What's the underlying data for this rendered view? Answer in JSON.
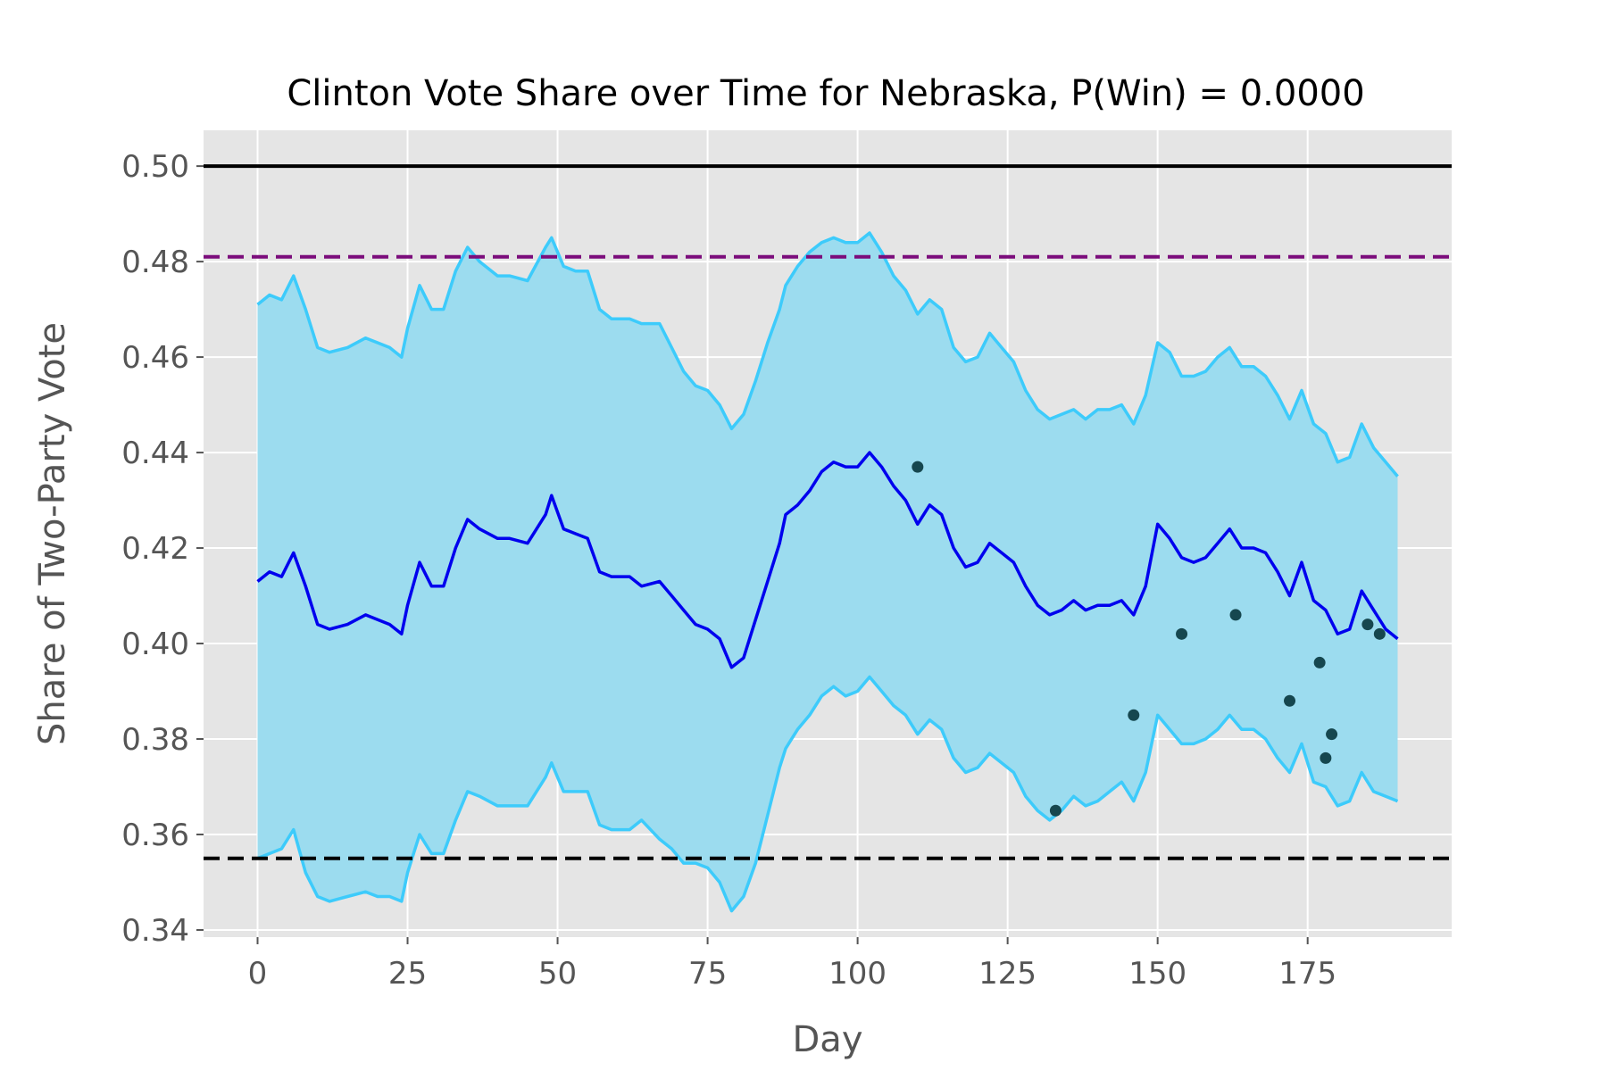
{
  "chart_data": {
    "type": "line",
    "title": "Clinton Vote Share over Time for Nebraska, P(Win) = 0.0000",
    "xlabel": "Day",
    "ylabel": "Share of Two-Party Vote",
    "xlim": [
      -9,
      199
    ],
    "ylim": [
      0.3385,
      0.5075
    ],
    "xticks": [
      0,
      25,
      50,
      75,
      100,
      125,
      150,
      175
    ],
    "yticks": [
      0.34,
      0.36,
      0.38,
      0.4,
      0.42,
      0.44,
      0.46,
      0.48,
      0.5
    ],
    "xtick_labels": [
      "0",
      "25",
      "50",
      "75",
      "100",
      "125",
      "150",
      "175"
    ],
    "ytick_labels": [
      "0.34",
      "0.36",
      "0.38",
      "0.40",
      "0.42",
      "0.44",
      "0.46",
      "0.48",
      "0.50"
    ],
    "grid": true,
    "colors": {
      "background": "#e5e5e5",
      "grid": "#ffffff",
      "band_fill": "#9cdcef",
      "band_edge": "#3dcbfb",
      "mean_line": "#0000ee",
      "reference_solid": "#000000",
      "reference_purple": "#7b0c7b",
      "reference_black_dashed": "#000000",
      "poll_points": "#16474f"
    },
    "reference_lines": [
      {
        "y": 0.5,
        "style": "solid",
        "color": "#000000"
      },
      {
        "y": 0.481,
        "style": "dashed",
        "color": "#7b0c7b"
      },
      {
        "y": 0.355,
        "style": "dashed",
        "color": "#000000"
      }
    ],
    "series": [
      {
        "role": "mean",
        "x": [
          0,
          2,
          4,
          6,
          8,
          10,
          12,
          15,
          18,
          20,
          22,
          24,
          25,
          27,
          29,
          31,
          33,
          35,
          37,
          40,
          42,
          45,
          48,
          49,
          51,
          53,
          55,
          57,
          59,
          62,
          64,
          67,
          69,
          71,
          73,
          75,
          77,
          79,
          81,
          83,
          85,
          87,
          88,
          90,
          92,
          94,
          96,
          98,
          100,
          102,
          104,
          106,
          108,
          110,
          112,
          114,
          116,
          118,
          120,
          122,
          124,
          126,
          128,
          130,
          132,
          134,
          136,
          138,
          140,
          142,
          144,
          146,
          148,
          150,
          152,
          154,
          156,
          158,
          160,
          162,
          164,
          166,
          168,
          170,
          172,
          174,
          176,
          178,
          180,
          182,
          184,
          186,
          188,
          190
        ],
        "y": [
          0.413,
          0.415,
          0.414,
          0.419,
          0.412,
          0.404,
          0.403,
          0.404,
          0.406,
          0.405,
          0.404,
          0.402,
          0.408,
          0.417,
          0.412,
          0.412,
          0.42,
          0.426,
          0.424,
          0.422,
          0.422,
          0.421,
          0.427,
          0.431,
          0.424,
          0.423,
          0.422,
          0.415,
          0.414,
          0.414,
          0.412,
          0.413,
          0.41,
          0.407,
          0.404,
          0.403,
          0.401,
          0.395,
          0.397,
          0.405,
          0.413,
          0.421,
          0.427,
          0.429,
          0.432,
          0.436,
          0.438,
          0.437,
          0.437,
          0.44,
          0.437,
          0.433,
          0.43,
          0.425,
          0.429,
          0.427,
          0.42,
          0.416,
          0.417,
          0.421,
          0.419,
          0.417,
          0.412,
          0.408,
          0.406,
          0.407,
          0.409,
          0.407,
          0.408,
          0.408,
          0.409,
          0.406,
          0.412,
          0.425,
          0.422,
          0.418,
          0.417,
          0.418,
          0.421,
          0.424,
          0.42,
          0.42,
          0.419,
          0.415,
          0.41,
          0.417,
          0.409,
          0.407,
          0.402,
          0.403,
          0.411,
          0.407,
          0.403,
          0.401
        ]
      },
      {
        "role": "upper_bound",
        "x": [
          0,
          2,
          4,
          6,
          8,
          10,
          12,
          15,
          18,
          20,
          22,
          24,
          25,
          27,
          29,
          31,
          33,
          35,
          37,
          40,
          42,
          45,
          48,
          49,
          51,
          53,
          55,
          57,
          59,
          62,
          64,
          67,
          69,
          71,
          73,
          75,
          77,
          79,
          81,
          83,
          85,
          87,
          88,
          90,
          92,
          94,
          96,
          98,
          100,
          102,
          104,
          106,
          108,
          110,
          112,
          114,
          116,
          118,
          120,
          122,
          124,
          126,
          128,
          130,
          132,
          134,
          136,
          138,
          140,
          142,
          144,
          146,
          148,
          150,
          152,
          154,
          156,
          158,
          160,
          162,
          164,
          166,
          168,
          170,
          172,
          174,
          176,
          178,
          180,
          182,
          184,
          186,
          188,
          190
        ],
        "y": [
          0.471,
          0.473,
          0.472,
          0.477,
          0.47,
          0.462,
          0.461,
          0.462,
          0.464,
          0.463,
          0.462,
          0.46,
          0.466,
          0.475,
          0.47,
          0.47,
          0.478,
          0.483,
          0.48,
          0.477,
          0.477,
          0.476,
          0.483,
          0.485,
          0.479,
          0.478,
          0.478,
          0.47,
          0.468,
          0.468,
          0.467,
          0.467,
          0.462,
          0.457,
          0.454,
          0.453,
          0.45,
          0.445,
          0.448,
          0.455,
          0.463,
          0.47,
          0.475,
          0.479,
          0.482,
          0.484,
          0.485,
          0.484,
          0.484,
          0.486,
          0.482,
          0.477,
          0.474,
          0.469,
          0.472,
          0.47,
          0.462,
          0.459,
          0.46,
          0.465,
          0.462,
          0.459,
          0.453,
          0.449,
          0.447,
          0.448,
          0.449,
          0.447,
          0.449,
          0.449,
          0.45,
          0.446,
          0.452,
          0.463,
          0.461,
          0.456,
          0.456,
          0.457,
          0.46,
          0.462,
          0.458,
          0.458,
          0.456,
          0.452,
          0.447,
          0.453,
          0.446,
          0.444,
          0.438,
          0.439,
          0.446,
          0.441,
          0.438,
          0.435
        ]
      },
      {
        "role": "lower_bound",
        "x": [
          0,
          2,
          4,
          6,
          8,
          10,
          12,
          15,
          18,
          20,
          22,
          24,
          25,
          27,
          29,
          31,
          33,
          35,
          37,
          40,
          42,
          45,
          48,
          49,
          51,
          53,
          55,
          57,
          59,
          62,
          64,
          67,
          69,
          71,
          73,
          75,
          77,
          79,
          81,
          83,
          85,
          87,
          88,
          90,
          92,
          94,
          96,
          98,
          100,
          102,
          104,
          106,
          108,
          110,
          112,
          114,
          116,
          118,
          120,
          122,
          124,
          126,
          128,
          130,
          132,
          134,
          136,
          138,
          140,
          142,
          144,
          146,
          148,
          150,
          152,
          154,
          156,
          158,
          160,
          162,
          164,
          166,
          168,
          170,
          172,
          174,
          176,
          178,
          180,
          182,
          184,
          186,
          188,
          190
        ],
        "y": [
          0.355,
          0.356,
          0.357,
          0.361,
          0.352,
          0.347,
          0.346,
          0.347,
          0.348,
          0.347,
          0.347,
          0.346,
          0.352,
          0.36,
          0.356,
          0.356,
          0.363,
          0.369,
          0.368,
          0.366,
          0.366,
          0.366,
          0.372,
          0.375,
          0.369,
          0.369,
          0.369,
          0.362,
          0.361,
          0.361,
          0.363,
          0.359,
          0.357,
          0.354,
          0.354,
          0.353,
          0.35,
          0.344,
          0.347,
          0.354,
          0.364,
          0.374,
          0.378,
          0.382,
          0.385,
          0.389,
          0.391,
          0.389,
          0.39,
          0.393,
          0.39,
          0.387,
          0.385,
          0.381,
          0.384,
          0.382,
          0.376,
          0.373,
          0.374,
          0.377,
          0.375,
          0.373,
          0.368,
          0.365,
          0.363,
          0.365,
          0.368,
          0.366,
          0.367,
          0.369,
          0.371,
          0.367,
          0.373,
          0.385,
          0.382,
          0.379,
          0.379,
          0.38,
          0.382,
          0.385,
          0.382,
          0.382,
          0.38,
          0.376,
          0.373,
          0.379,
          0.371,
          0.37,
          0.366,
          0.367,
          0.373,
          0.369,
          0.368,
          0.367
        ]
      }
    ],
    "scatter": {
      "x": [
        110,
        133,
        146,
        154,
        163,
        172,
        177,
        178,
        179,
        185,
        187
      ],
      "y": [
        0.437,
        0.365,
        0.385,
        0.402,
        0.406,
        0.388,
        0.396,
        0.376,
        0.381,
        0.404,
        0.402
      ]
    }
  }
}
